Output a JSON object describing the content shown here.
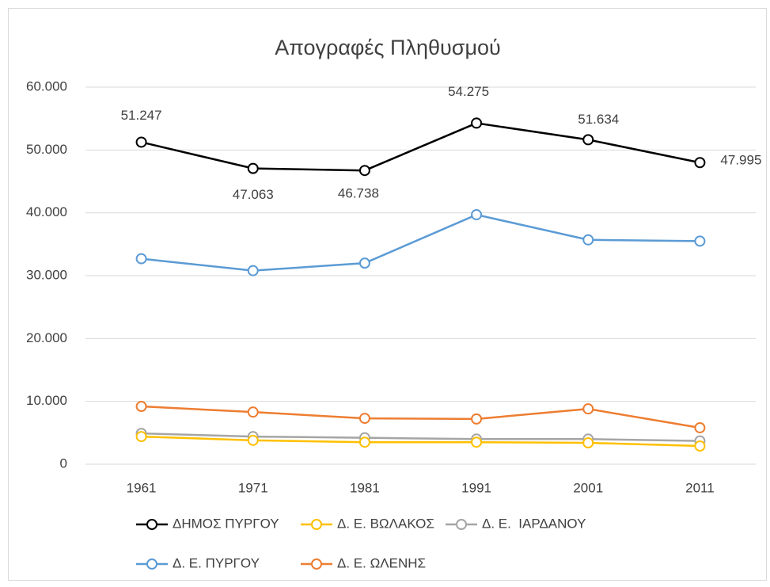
{
  "chart_data": {
    "type": "line",
    "title": "Απογραφές Πληθυσμού",
    "categories": [
      "1961",
      "1971",
      "1981",
      "1991",
      "2001",
      "2011"
    ],
    "series": [
      {
        "name": "ΔΗΜΟΣ ΠΥΡΓΟΥ",
        "color": "#000000",
        "values": [
          51247,
          47063,
          46738,
          54275,
          51634,
          47995
        ],
        "value_labels": [
          "51.247",
          "47.063",
          "46.738",
          "54.275",
          "51.634",
          "47.995"
        ]
      },
      {
        "name": "Δ. Ε. ΒΩΛΑΚΟΣ",
        "color": "#ffc000",
        "values": [
          4400,
          3800,
          3500,
          3500,
          3400,
          2900
        ]
      },
      {
        "name": "Δ. Ε.  ΙΑΡΔΑΝΟΥ",
        "color": "#a5a5a5",
        "values": [
          4900,
          4400,
          4200,
          4000,
          4000,
          3700
        ]
      },
      {
        "name": "Δ. Ε. ΠΥΡΓΟΥ",
        "color": "#5b9bd5",
        "values": [
          32700,
          30800,
          32000,
          39700,
          35700,
          35500
        ]
      },
      {
        "name": "Δ. Ε. ΩΛΕΝΗΣ",
        "color": "#ed7d31",
        "values": [
          9200,
          8300,
          7300,
          7200,
          8800,
          5800
        ]
      }
    ],
    "ylim": [
      0,
      60000
    ],
    "yticks": [
      0,
      {
        "value": 10000,
        "label": "10.000"
      },
      {
        "value": 20000,
        "label": "20.000"
      },
      {
        "value": 30000,
        "label": "30.000"
      },
      {
        "value": 40000,
        "label": "40.000"
      },
      {
        "value": 50000,
        "label": "50.000"
      },
      {
        "value": 60000,
        "label": "60.000"
      }
    ],
    "grid": true,
    "legend": "bottom"
  }
}
